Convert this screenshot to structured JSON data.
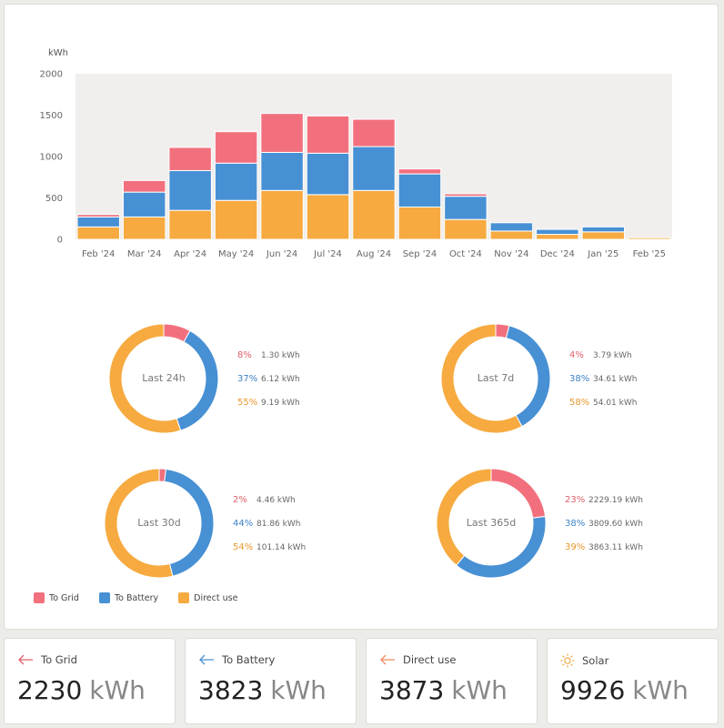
{
  "colors": {
    "to_grid": "#f2707e",
    "to_battery": "#4790d4",
    "direct_use": "#f6aa40",
    "plot_bg": "#f0efed"
  },
  "chart_data": {
    "type": "bar",
    "stacked": true,
    "ylabel": "kWh",
    "ylim": [
      0,
      2000
    ],
    "yticks": [
      0,
      500,
      1000,
      1500,
      2000
    ],
    "categories": [
      "Feb '24",
      "Mar '24",
      "Apr '24",
      "May '24",
      "Jun '24",
      "Jul '24",
      "Aug '24",
      "Sep '24",
      "Oct '24",
      "Nov '24",
      "Dec '24",
      "Jan '25",
      "Feb '25"
    ],
    "series": [
      {
        "name": "Direct use",
        "color": "#f6aa40",
        "values": [
          150,
          270,
          350,
          470,
          590,
          540,
          590,
          390,
          240,
          100,
          60,
          90,
          20
        ]
      },
      {
        "name": "To Battery",
        "color": "#4790d4",
        "values": [
          120,
          300,
          480,
          450,
          460,
          500,
          530,
          400,
          280,
          100,
          60,
          60,
          0
        ]
      },
      {
        "name": "To Grid",
        "color": "#f2707e",
        "values": [
          30,
          140,
          280,
          380,
          470,
          450,
          330,
          60,
          30,
          0,
          0,
          0,
          0
        ]
      }
    ],
    "grid": false,
    "legend": "bottom-left"
  },
  "donuts": [
    {
      "center": "Last 24h",
      "rows": [
        {
          "pct": "8%",
          "value": "1.30 kWh"
        },
        {
          "pct": "37%",
          "value": "6.12 kWh"
        },
        {
          "pct": "55%",
          "value": "9.19 kWh"
        }
      ],
      "fractions": [
        0.08,
        0.37,
        0.55
      ]
    },
    {
      "center": "Last 7d",
      "rows": [
        {
          "pct": "4%",
          "value": "3.79 kWh"
        },
        {
          "pct": "38%",
          "value": "34.61 kWh"
        },
        {
          "pct": "58%",
          "value": "54.01 kWh"
        }
      ],
      "fractions": [
        0.04,
        0.38,
        0.58
      ]
    },
    {
      "center": "Last 30d",
      "rows": [
        {
          "pct": "2%",
          "value": "4.46 kWh"
        },
        {
          "pct": "44%",
          "value": "81.86 kWh"
        },
        {
          "pct": "54%",
          "value": "101.14 kWh"
        }
      ],
      "fractions": [
        0.02,
        0.44,
        0.54
      ]
    },
    {
      "center": "Last 365d",
      "rows": [
        {
          "pct": "23%",
          "value": "2229.19 kWh"
        },
        {
          "pct": "38%",
          "value": "3809.60 kWh"
        },
        {
          "pct": "39%",
          "value": "3863.11 kWh"
        }
      ],
      "fractions": [
        0.23,
        0.38,
        0.39
      ]
    }
  ],
  "legend": {
    "to_grid": "To Grid",
    "to_battery": "To Battery",
    "direct_use": "Direct use"
  },
  "stats": [
    {
      "label": "To Grid",
      "value": "2230",
      "unit": "kWh",
      "icon": "arrow-left-icon"
    },
    {
      "label": "To Battery",
      "value": "3823",
      "unit": "kWh",
      "icon": "arrow-left-icon"
    },
    {
      "label": "Direct use",
      "value": "3873",
      "unit": "kWh",
      "icon": "arrow-left-icon"
    },
    {
      "label": "Solar",
      "value": "9926",
      "unit": "kWh",
      "icon": "sun-icon"
    }
  ]
}
